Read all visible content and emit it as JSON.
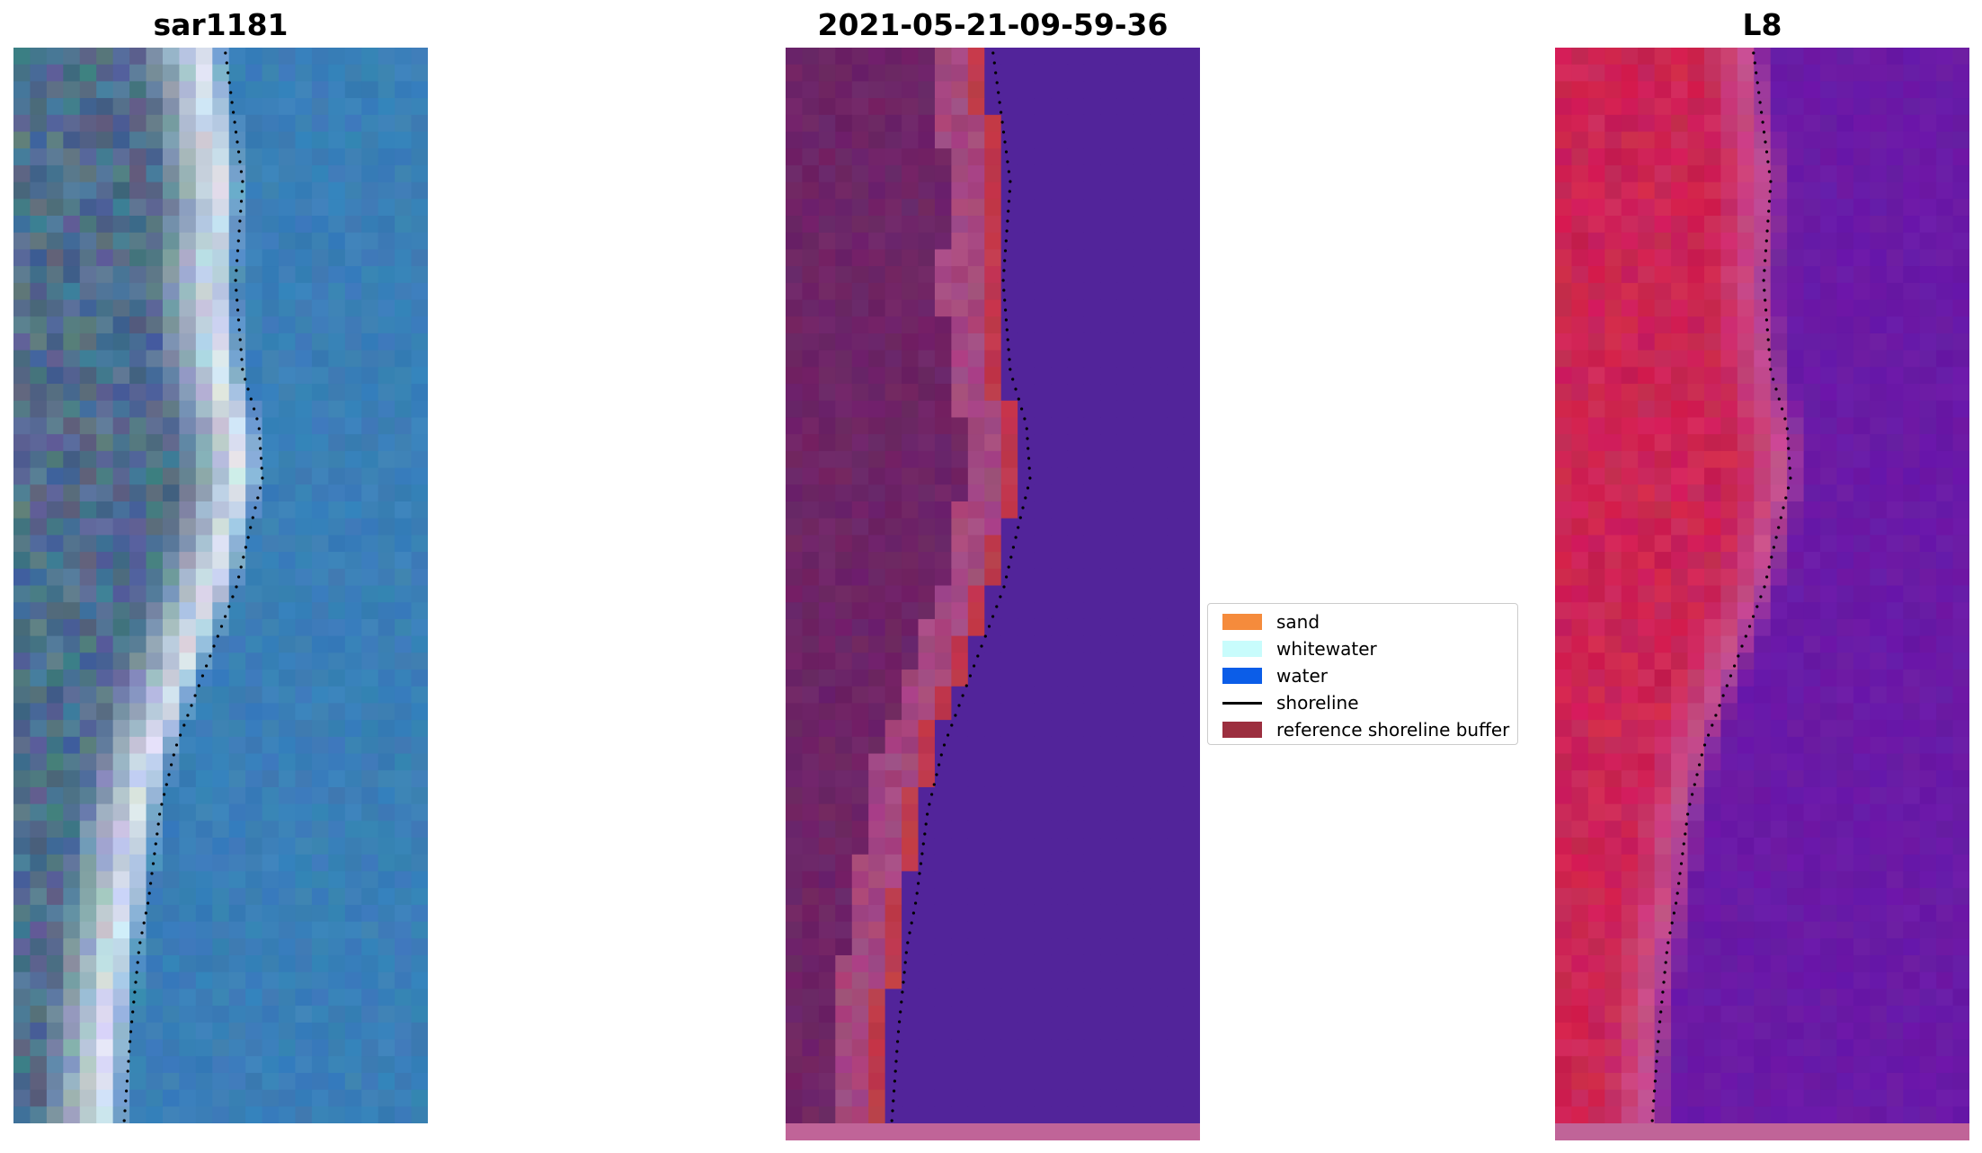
{
  "panels": [
    {
      "title": "sar1181",
      "kind": "rgb"
    },
    {
      "title": "2021-05-21-09-59-36",
      "kind": "classified"
    },
    {
      "title": "L8",
      "kind": "falsecolor"
    }
  ],
  "legend": {
    "items": [
      {
        "label": "sand",
        "color": "#f58b3c",
        "type": "patch"
      },
      {
        "label": "whitewater",
        "color": "#c8fcfc",
        "type": "patch"
      },
      {
        "label": "water",
        "color": "#0b5de8",
        "type": "patch"
      },
      {
        "label": "shoreline",
        "color": "#000000",
        "type": "line"
      },
      {
        "label": "reference shoreline buffer",
        "color": "#9c2f3f",
        "type": "patch"
      }
    ]
  },
  "colors": {
    "rgb_land": "#4f6e8c",
    "rgb_beach": "#dfe8f2",
    "rgb_water": "#3a7fb7",
    "cls_land": "#6e2466",
    "cls_sand": "#a5487f",
    "cls_buffer": "#c03a4c",
    "cls_water": "#52249a",
    "fc_land": "#cc2454",
    "fc_beach": "#c64f8e",
    "fc_water": "#6a1aa6",
    "bottom_strip": "#c06498",
    "shoreline": "#000000"
  }
}
